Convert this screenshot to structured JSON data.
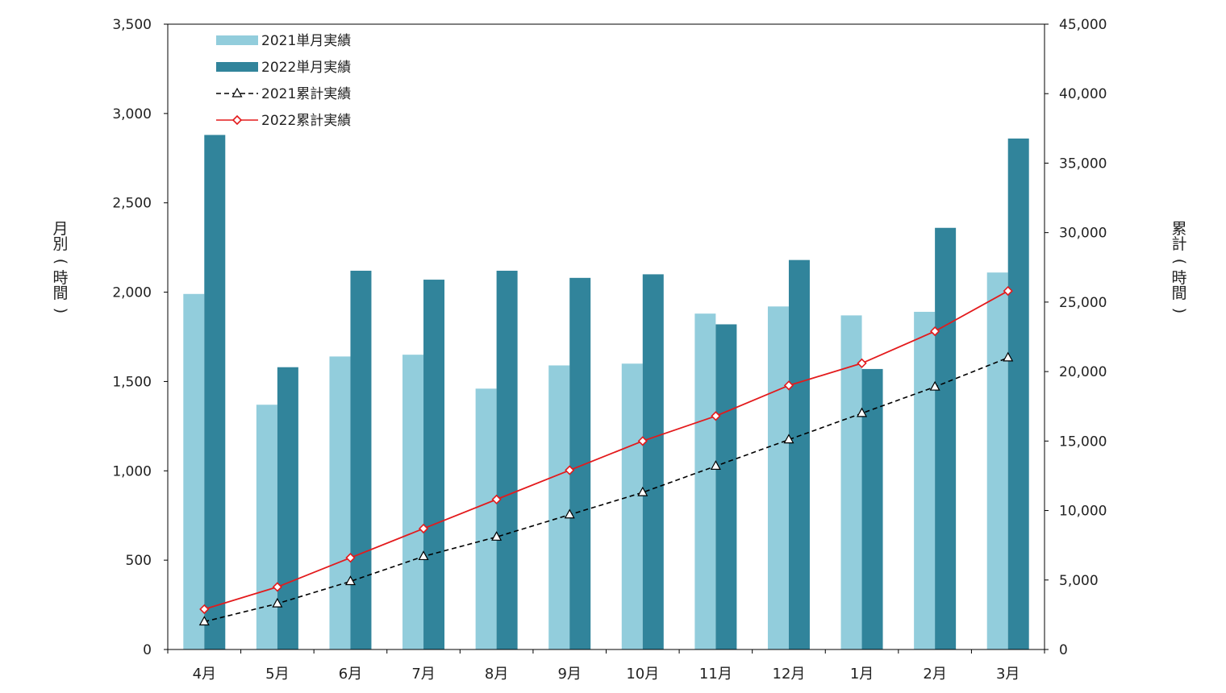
{
  "chart_data": {
    "type": "bar",
    "categories": [
      "4月",
      "5月",
      "6月",
      "7月",
      "8月",
      "9月",
      "10月",
      "11月",
      "12月",
      "1月",
      "2月",
      "3月"
    ],
    "series": [
      {
        "name": "2021単月実績",
        "kind": "bar",
        "axis": "left",
        "color": "#92cddc",
        "values": [
          1990,
          1370,
          1640,
          1650,
          1460,
          1590,
          1600,
          1880,
          1920,
          1870,
          1890,
          2110
        ]
      },
      {
        "name": "2022単月実績",
        "kind": "bar",
        "axis": "left",
        "color": "#31849b",
        "values": [
          2880,
          1580,
          2120,
          2070,
          2120,
          2080,
          2100,
          1820,
          2180,
          1570,
          2360,
          2860
        ]
      },
      {
        "name": "2021累計実績",
        "kind": "line",
        "axis": "right",
        "color": "#000000",
        "dash": true,
        "marker": "triangle",
        "values": [
          2000,
          3300,
          4900,
          6700,
          8100,
          9700,
          11300,
          13200,
          15100,
          17000,
          18900,
          21000
        ]
      },
      {
        "name": "2022累計実績",
        "kind": "line",
        "axis": "right",
        "color": "#e31a1c",
        "dash": false,
        "marker": "diamond",
        "values": [
          2900,
          4500,
          6600,
          8700,
          10800,
          12900,
          15000,
          16800,
          19000,
          20600,
          22900,
          25800
        ]
      }
    ],
    "ylim_left": [
      0,
      3500
    ],
    "ylim_right": [
      0,
      45000
    ],
    "left_ticks": [
      "0",
      "500",
      "1,000",
      "1,500",
      "2,000",
      "2,500",
      "3,000",
      "3,500"
    ],
    "right_ticks": [
      "0",
      "5,000",
      "10,000",
      "15,000",
      "20,000",
      "25,000",
      "30,000",
      "35,000",
      "40,000",
      "45,000"
    ],
    "ylabel_left": [
      "月",
      "別",
      "(",
      "時",
      "間",
      ")"
    ],
    "ylabel_right": [
      "累",
      "計",
      "(",
      "時",
      "間",
      ")"
    ],
    "legend_position": "top-left",
    "grid": false
  }
}
